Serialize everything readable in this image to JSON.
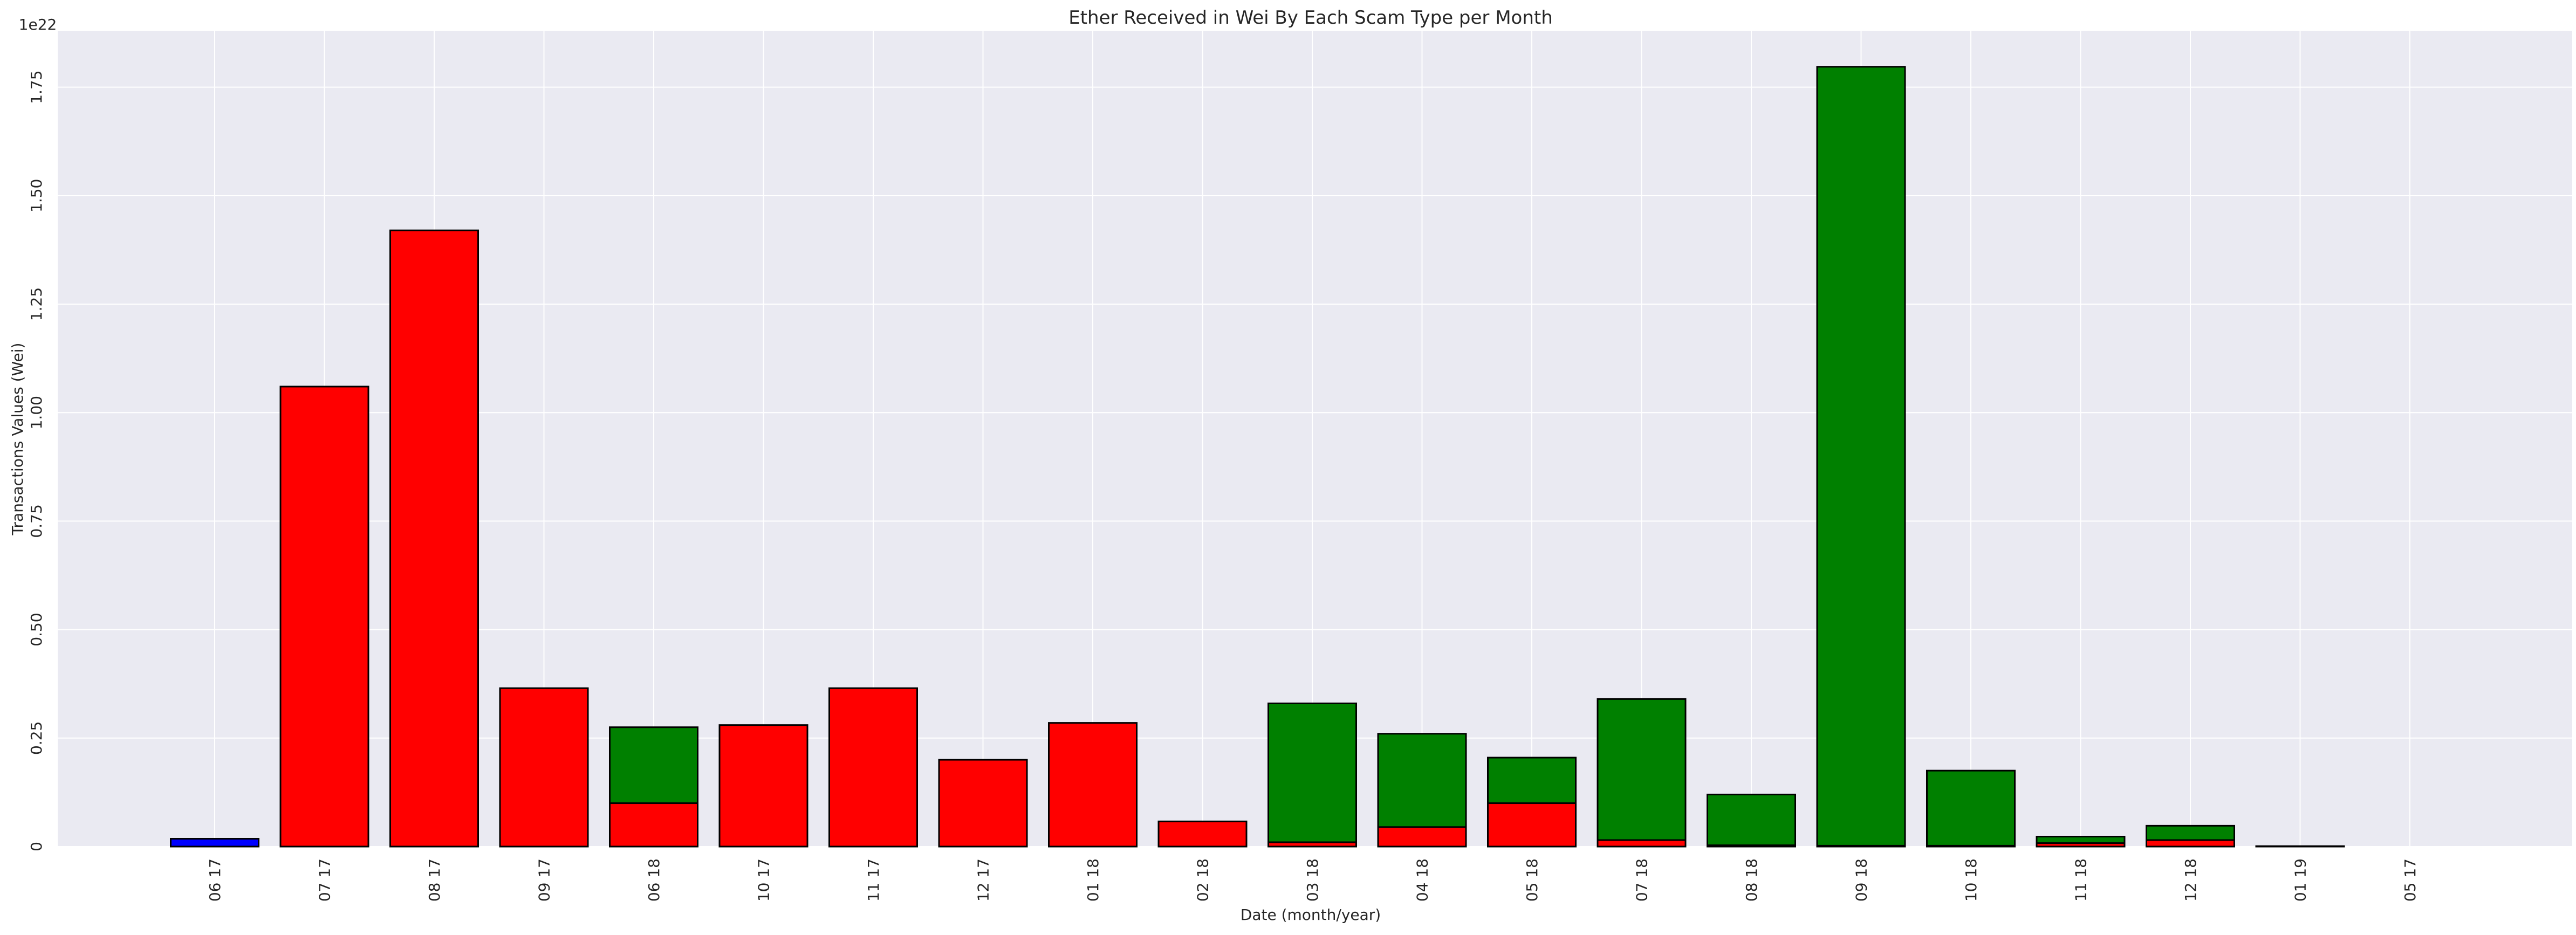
{
  "chart_data": {
    "type": "bar",
    "stacked": true,
    "title": "Ether Received in Wei By Each Scam Type per Month",
    "xlabel": "Date (month/year)",
    "ylabel": "Transactions Values (Wei)",
    "y_offset_label": "1e22",
    "y_scale": 1e+22,
    "ylim": [
      0,
      1.88
    ],
    "yticks": [
      0,
      0.25,
      0.5,
      0.75,
      1.0,
      1.25,
      1.5,
      1.75
    ],
    "ytick_labels": [
      "0",
      "0.25",
      "0.50",
      "0.75",
      "1.00",
      "1.25",
      "1.50",
      "1.75"
    ],
    "grid": true,
    "categories": [
      "06 17",
      "07 17",
      "08 17",
      "09 17",
      "06 18",
      "10 17",
      "11 17",
      "12 17",
      "01 18",
      "02 18",
      "03 18",
      "04 18",
      "05 18",
      "07 18",
      "08 18",
      "09 18",
      "10 18",
      "11 18",
      "12 18",
      "01 19",
      "05 17"
    ],
    "series": [
      {
        "color": "#0000ff",
        "values": [
          0.018,
          0,
          0,
          0,
          0,
          0,
          0,
          0,
          0,
          0,
          0,
          0,
          0,
          0,
          0,
          0,
          0,
          0,
          0,
          0.001,
          0
        ]
      },
      {
        "color": "#ff0000",
        "values": [
          0,
          1.06,
          1.42,
          0.365,
          0.1,
          0.28,
          0.365,
          0.2,
          0.285,
          0.058,
          0.01,
          0.045,
          0.1,
          0.015,
          0.003,
          0.002,
          0.002,
          0.008,
          0.015,
          0,
          0
        ]
      },
      {
        "color": "#008000",
        "values": [
          0,
          0,
          0,
          0,
          0.175,
          0,
          0,
          0,
          0,
          0,
          0.32,
          0.215,
          0.105,
          0.325,
          0.117,
          1.795,
          0.173,
          0.015,
          0.033,
          0,
          0
        ]
      }
    ]
  }
}
